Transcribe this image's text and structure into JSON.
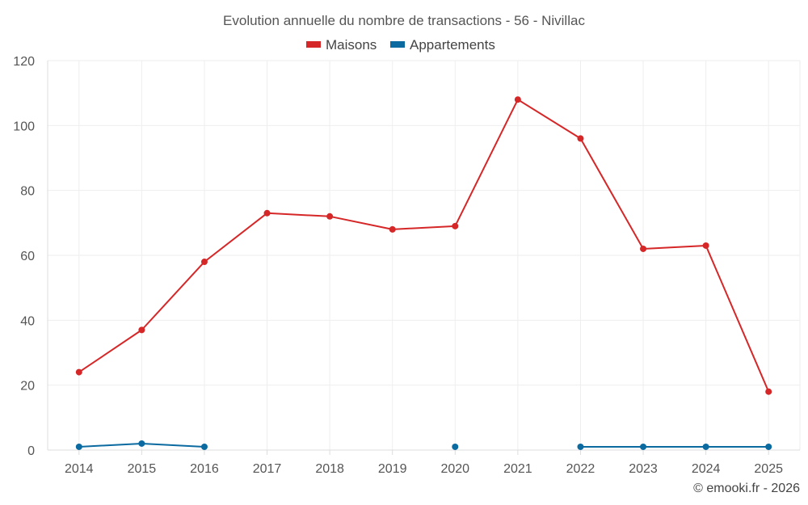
{
  "chart_data": {
    "type": "line",
    "title": "Evolution annuelle du nombre de transactions - 56 - Nivillac",
    "categories": [
      "2014",
      "2015",
      "2016",
      "2017",
      "2018",
      "2019",
      "2020",
      "2021",
      "2022",
      "2023",
      "2024",
      "2025"
    ],
    "series": [
      {
        "name": "Maisons",
        "color": "#d62728",
        "values": [
          24,
          37,
          58,
          73,
          72,
          68,
          69,
          108,
          96,
          62,
          63,
          18
        ]
      },
      {
        "name": "Appartements",
        "color": "#0b6aa0",
        "values": [
          1,
          2,
          1,
          null,
          null,
          null,
          1,
          null,
          1,
          1,
          1,
          1
        ]
      }
    ],
    "y_ticks": [
      0,
      20,
      40,
      60,
      80,
      100,
      120
    ],
    "ylim": [
      0,
      120
    ],
    "legend_position": "top-center",
    "grid": true,
    "xlabel": "",
    "ylabel": ""
  },
  "credit": "© emooki.fr - 2026"
}
